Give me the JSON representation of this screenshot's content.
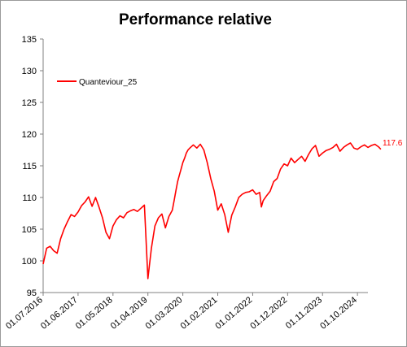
{
  "chart_data": {
    "type": "line",
    "title": "Performance relative",
    "xlabel": "",
    "ylabel": "",
    "ylim": [
      95,
      135
    ],
    "yticks": [
      95,
      100,
      105,
      110,
      115,
      120,
      125,
      130,
      135
    ],
    "x_tick_labels": [
      "01.07.2016",
      "01.06.2017",
      "01.05.2018",
      "01.04.2019",
      "01.03.2020",
      "01.02.2021",
      "01.01.2022",
      "01.12.2022",
      "01.11.2023",
      "01.10.2024"
    ],
    "grid": false,
    "legend": "top-left",
    "end_label": "117.6",
    "series": [
      {
        "name": "Quanteviour_25",
        "color": "#ff0000",
        "x": [
          0,
          0.1,
          0.2,
          0.3,
          0.4,
          0.5,
          0.6,
          0.7,
          0.8,
          0.9,
          1.0,
          1.1,
          1.2,
          1.3,
          1.4,
          1.5,
          1.6,
          1.7,
          1.8,
          1.9,
          2.0,
          2.1,
          2.2,
          2.3,
          2.4,
          2.5,
          2.6,
          2.7,
          2.8,
          2.9,
          3.0,
          3.1,
          3.2,
          3.3,
          3.4,
          3.5,
          3.6,
          3.7,
          3.75,
          3.8,
          3.85,
          3.9,
          3.95,
          4.0,
          4.05,
          4.1,
          4.15,
          4.2,
          4.3,
          4.4,
          4.5,
          4.6,
          4.7,
          4.8,
          4.9,
          5.0,
          5.1,
          5.2,
          5.3,
          5.4,
          5.5,
          5.6,
          5.7,
          5.8,
          5.9,
          6.0,
          6.1,
          6.2,
          6.25,
          6.3,
          6.4,
          6.5,
          6.6,
          6.7,
          6.8,
          6.9,
          7.0,
          7.1,
          7.2,
          7.3,
          7.4,
          7.5,
          7.6,
          7.7,
          7.8,
          7.9,
          8.0,
          8.1,
          8.2,
          8.3,
          8.4,
          8.5,
          8.6,
          8.7,
          8.8,
          8.9,
          9.0,
          9.1,
          9.2,
          9.3,
          9.4,
          9.5,
          9.6,
          9.67
        ],
        "values": [
          99.5,
          102.0,
          102.3,
          101.6,
          101.2,
          103.5,
          105.0,
          106.2,
          107.3,
          107.0,
          107.7,
          108.7,
          109.3,
          110.1,
          108.6,
          110.0,
          108.5,
          106.8,
          104.5,
          103.5,
          105.5,
          106.5,
          107.1,
          106.8,
          107.6,
          107.9,
          108.1,
          107.8,
          108.3,
          108.8,
          97.2,
          102.0,
          105.5,
          106.8,
          107.4,
          105.2,
          107.0,
          108.0,
          109.5,
          111.0,
          112.5,
          113.5,
          114.5,
          115.5,
          116.2,
          117.0,
          117.5,
          117.8,
          118.3,
          117.8,
          118.4,
          117.5,
          115.5,
          113.0,
          111.0,
          108.0,
          109.0,
          107.3,
          104.5,
          107.2,
          108.5,
          110.0,
          110.5,
          110.8,
          110.9,
          111.2,
          110.5,
          110.8,
          108.5,
          109.5,
          110.3,
          111.0,
          112.5,
          113.0,
          114.5,
          115.3,
          115.0,
          116.2,
          115.5,
          116.0,
          116.5,
          115.7,
          116.8,
          117.7,
          118.2,
          116.5,
          117.0,
          117.4,
          117.6,
          117.9,
          118.4,
          117.3,
          117.9,
          118.3,
          118.6,
          117.8,
          117.6,
          118.0,
          118.3,
          117.9,
          118.2,
          118.4,
          118.0,
          117.6
        ]
      }
    ]
  }
}
